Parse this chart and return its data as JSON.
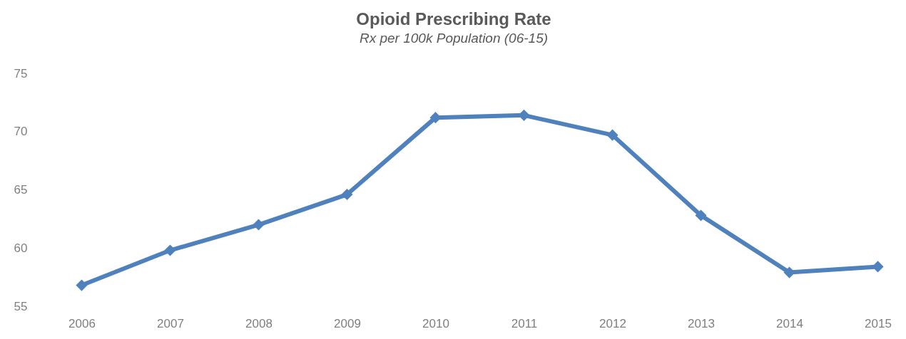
{
  "chart_data": {
    "type": "line",
    "title": "Opioid Prescribing Rate",
    "subtitle": "Rx per 100k Population (06-15)",
    "categories": [
      "2006",
      "2007",
      "2008",
      "2009",
      "2010",
      "2011",
      "2012",
      "2013",
      "2014",
      "2015"
    ],
    "series": [
      {
        "color": "#4f81bd",
        "values": [
          56.8,
          59.8,
          62.0,
          64.6,
          71.2,
          71.4,
          69.7,
          62.8,
          57.9,
          58.4
        ]
      }
    ],
    "ylim": [
      55,
      75
    ],
    "yticks": [
      55,
      60,
      65,
      70,
      75
    ],
    "grid": false,
    "marker": "diamond",
    "line_style": "solid"
  }
}
